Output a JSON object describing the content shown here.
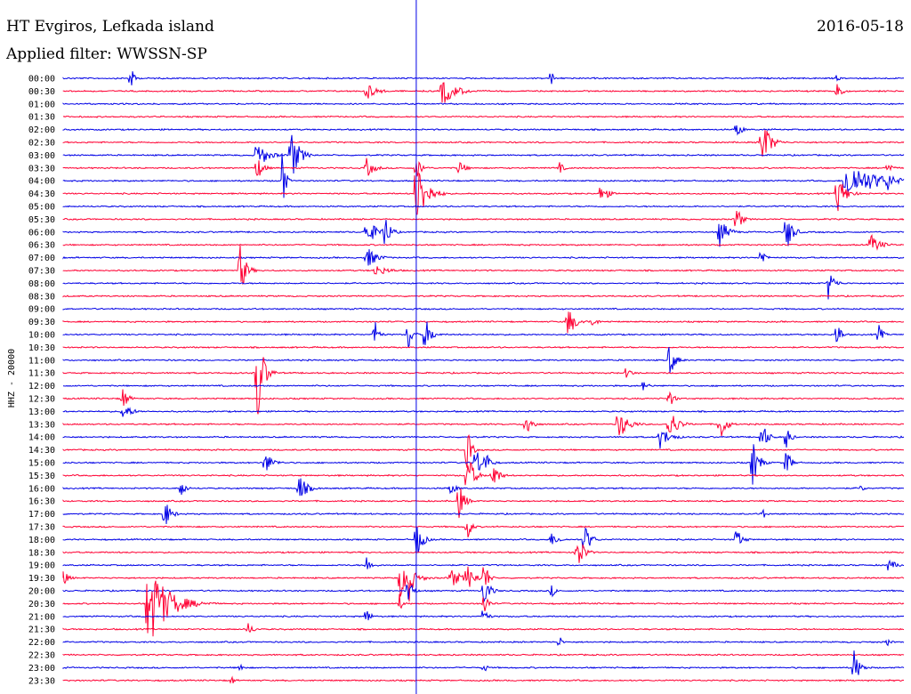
{
  "header": {
    "station": "HT Evgiros, Lefkada island",
    "filter": "Applied filter: WWSSN-SP",
    "date": "2016-05-18"
  },
  "chart_data": {
    "type": "line",
    "ylabel": "HHZ - 20000",
    "row_labels": [
      "00:00",
      "00:30",
      "01:00",
      "01:30",
      "02:00",
      "02:30",
      "03:00",
      "03:30",
      "04:00",
      "04:30",
      "05:00",
      "05:30",
      "06:00",
      "06:30",
      "07:00",
      "07:30",
      "08:00",
      "08:30",
      "09:00",
      "09:30",
      "10:00",
      "10:30",
      "11:00",
      "11:30",
      "12:00",
      "12:30",
      "13:00",
      "13:30",
      "14:00",
      "14:30",
      "15:00",
      "15:30",
      "16:00",
      "16:30",
      "17:00",
      "17:30",
      "18:00",
      "18:30",
      "19:00",
      "19:30",
      "20:00",
      "20:30",
      "21:00",
      "21:30",
      "22:00",
      "22:30",
      "23:00",
      "23:30"
    ],
    "colors": {
      "even_row": "#0000e6",
      "odd_row": "#ff0033",
      "marker": "#0000e6"
    },
    "events": [
      [
        0,
        0.08,
        1.0,
        4
      ],
      [
        0,
        0.58,
        0.8,
        3
      ],
      [
        0,
        0.92,
        0.6,
        2
      ],
      [
        1,
        0.36,
        0.8,
        10
      ],
      [
        1,
        0.45,
        1.2,
        14
      ],
      [
        1,
        0.92,
        1.2,
        4
      ],
      [
        4,
        0.8,
        0.9,
        5
      ],
      [
        5,
        0.83,
        2.4,
        8
      ],
      [
        6,
        0.23,
        1.3,
        10
      ],
      [
        6,
        0.27,
        2.4,
        8
      ],
      [
        7,
        0.23,
        1.1,
        6
      ],
      [
        7,
        0.36,
        0.9,
        8
      ],
      [
        7,
        0.42,
        0.9,
        6
      ],
      [
        7,
        0.47,
        0.8,
        6
      ],
      [
        7,
        0.59,
        0.5,
        5
      ],
      [
        7,
        0.98,
        0.8,
        4
      ],
      [
        8,
        0.26,
        3.4,
        3
      ],
      [
        8,
        0.93,
        1.6,
        30
      ],
      [
        8,
        0.98,
        1.0,
        6
      ],
      [
        9,
        0.42,
        3.0,
        10
      ],
      [
        9,
        0.64,
        1.0,
        6
      ],
      [
        9,
        0.92,
        1.8,
        8
      ],
      [
        11,
        0.8,
        1.4,
        5
      ],
      [
        12,
        0.36,
        1.2,
        10
      ],
      [
        12,
        0.38,
        2.0,
        6
      ],
      [
        12,
        0.78,
        1.3,
        8
      ],
      [
        12,
        0.86,
        1.8,
        6
      ],
      [
        13,
        0.96,
        0.9,
        10
      ],
      [
        14,
        0.36,
        1.0,
        10
      ],
      [
        14,
        0.83,
        1.0,
        4
      ],
      [
        15,
        0.21,
        2.2,
        6
      ],
      [
        15,
        0.37,
        0.5,
        14
      ],
      [
        16,
        0.91,
        1.3,
        6
      ],
      [
        19,
        0.6,
        1.3,
        8
      ],
      [
        19,
        0.63,
        0.7,
        4
      ],
      [
        20,
        0.37,
        1.4,
        4
      ],
      [
        20,
        0.41,
        1.6,
        4
      ],
      [
        20,
        0.43,
        1.6,
        6
      ],
      [
        20,
        0.92,
        1.4,
        4
      ],
      [
        20,
        0.97,
        0.9,
        4
      ],
      [
        22,
        0.72,
        1.6,
        6
      ],
      [
        23,
        0.23,
        5.0,
        6
      ],
      [
        23,
        0.67,
        0.8,
        4
      ],
      [
        24,
        0.69,
        0.7,
        4
      ],
      [
        25,
        0.07,
        1.2,
        5
      ],
      [
        25,
        0.72,
        0.9,
        5
      ],
      [
        26,
        0.07,
        0.9,
        8
      ],
      [
        27,
        0.55,
        1.2,
        6
      ],
      [
        27,
        0.66,
        1.3,
        10
      ],
      [
        27,
        0.72,
        1.6,
        8
      ],
      [
        27,
        0.78,
        1.8,
        6
      ],
      [
        28,
        0.71,
        0.9,
        10
      ],
      [
        28,
        0.83,
        1.5,
        6
      ],
      [
        28,
        0.86,
        1.2,
        4
      ],
      [
        29,
        0.48,
        2.2,
        4
      ],
      [
        30,
        0.24,
        0.9,
        8
      ],
      [
        30,
        0.49,
        1.6,
        6
      ],
      [
        30,
        0.5,
        1.2,
        6
      ],
      [
        30,
        0.82,
        2.0,
        6
      ],
      [
        30,
        0.86,
        1.5,
        4
      ],
      [
        31,
        0.48,
        2.4,
        6
      ],
      [
        31,
        0.51,
        1.4,
        6
      ],
      [
        32,
        0.14,
        1.0,
        4
      ],
      [
        32,
        0.28,
        1.2,
        8
      ],
      [
        32,
        0.46,
        0.6,
        6
      ],
      [
        32,
        0.95,
        0.4,
        3
      ],
      [
        33,
        0.47,
        1.6,
        6
      ],
      [
        34,
        0.12,
        1.4,
        6
      ],
      [
        34,
        0.83,
        0.7,
        4
      ],
      [
        35,
        0.48,
        1.4,
        4
      ],
      [
        36,
        0.42,
        1.6,
        6
      ],
      [
        36,
        0.58,
        0.6,
        8
      ],
      [
        36,
        0.62,
        1.4,
        6
      ],
      [
        36,
        0.8,
        1.0,
        6
      ],
      [
        37,
        0.61,
        2.3,
        6
      ],
      [
        38,
        0.36,
        0.8,
        6
      ],
      [
        38,
        0.98,
        0.5,
        10
      ],
      [
        39,
        0.0,
        0.6,
        6
      ],
      [
        39,
        0.4,
        1.6,
        12
      ],
      [
        39,
        0.41,
        3.2,
        4
      ],
      [
        39,
        0.46,
        0.9,
        10
      ],
      [
        39,
        0.48,
        1.2,
        8
      ],
      [
        39,
        0.5,
        2.0,
        4
      ],
      [
        40,
        0.41,
        1.6,
        4
      ],
      [
        40,
        0.5,
        1.4,
        6
      ],
      [
        40,
        0.58,
        0.7,
        4
      ],
      [
        41,
        0.1,
        3.6,
        20
      ],
      [
        41,
        0.4,
        0.8,
        3
      ],
      [
        41,
        0.5,
        1.4,
        4
      ],
      [
        42,
        0.36,
        0.9,
        4
      ],
      [
        42,
        0.5,
        0.9,
        4
      ],
      [
        43,
        0.22,
        0.5,
        6
      ],
      [
        44,
        0.59,
        0.6,
        3
      ],
      [
        44,
        0.98,
        0.5,
        3
      ],
      [
        46,
        0.21,
        0.6,
        3
      ],
      [
        46,
        0.5,
        0.6,
        3
      ],
      [
        46,
        0.94,
        1.6,
        6
      ],
      [
        47,
        0.2,
        0.5,
        3
      ]
    ],
    "marker_x_fraction": 0.42
  }
}
